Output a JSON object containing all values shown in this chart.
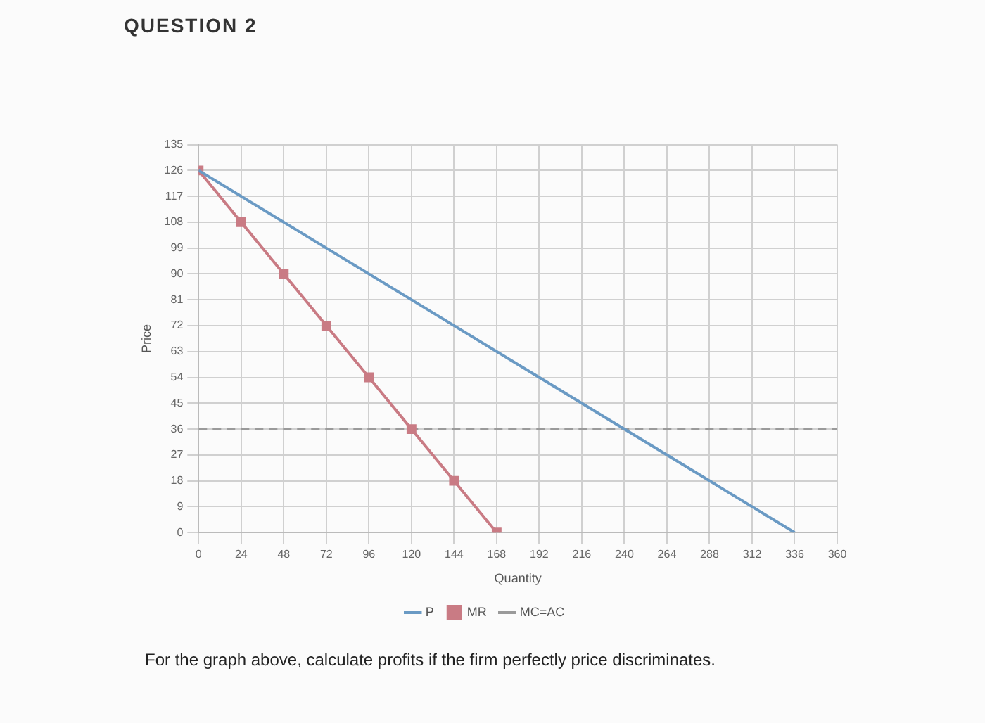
{
  "chart_data": {
    "type": "line",
    "title": "QUESTION 2",
    "xlabel": "Quantity",
    "ylabel": "Price",
    "annotations": [
      "For the graph above, calculate profits if the firm perfectly price discriminates."
    ],
    "series": [
      {
        "name": "P",
        "color": "#6a9ac4",
        "x": [
          0,
          336
        ],
        "values": [
          126,
          0
        ],
        "marker": "none",
        "line_style": "solid"
      },
      {
        "name": "MR",
        "color": "#c97b84",
        "x": [
          0,
          24,
          48,
          72,
          96,
          120,
          144,
          168
        ],
        "values": [
          126,
          108,
          90,
          72,
          54,
          36,
          18,
          0
        ],
        "marker": "square",
        "line_style": "solid"
      },
      {
        "name": "MC=AC",
        "color": "#9a9a9a",
        "x": [
          0,
          360
        ],
        "values": [
          36,
          36
        ],
        "marker": "none",
        "line_style": "dashed"
      }
    ],
    "xlim": [
      0,
      360
    ],
    "xticks": [
      0,
      24,
      48,
      72,
      96,
      120,
      144,
      168,
      192,
      216,
      240,
      264,
      288,
      312,
      336,
      360
    ],
    "ylim": [
      0,
      135
    ],
    "yticks": [
      0,
      9,
      18,
      27,
      36,
      45,
      54,
      63,
      72,
      81,
      90,
      99,
      108,
      117,
      126,
      135
    ],
    "grid": true,
    "legend": "bottom"
  }
}
